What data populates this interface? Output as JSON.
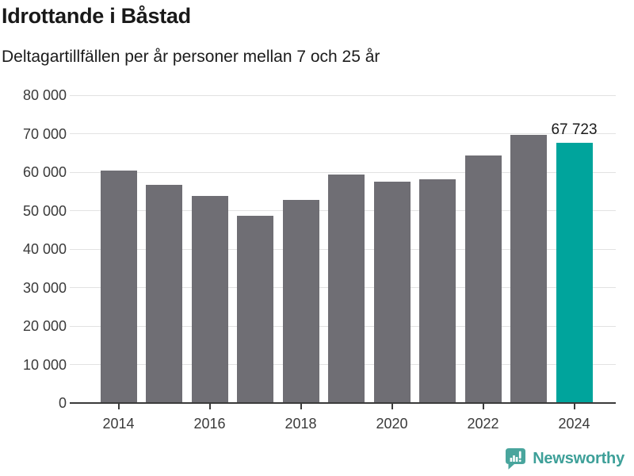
{
  "chart_data": {
    "type": "bar",
    "title": "Idrottande i Båstad",
    "subtitle": "Deltagartillfällen per år personer mellan 7 och 25 år",
    "categories": [
      "2014",
      "2015",
      "2016",
      "2017",
      "2018",
      "2019",
      "2020",
      "2021",
      "2022",
      "2023",
      "2024"
    ],
    "values": [
      60400,
      56700,
      53800,
      48800,
      52900,
      59500,
      57600,
      58300,
      64300,
      69700,
      67723
    ],
    "xlabel": "",
    "ylabel": "",
    "ylim": [
      0,
      80000
    ],
    "ytick_values": [
      0,
      10000,
      20000,
      30000,
      40000,
      50000,
      60000,
      70000,
      80000
    ],
    "ytick_labels": [
      "0",
      "10 000",
      "20 000",
      "30 000",
      "40 000",
      "50 000",
      "60 000",
      "70 000",
      "80 000"
    ],
    "xtick_labels": [
      "2014",
      "2016",
      "2018",
      "2020",
      "2022",
      "2024"
    ],
    "grid": "horizontal-gridlines-on",
    "legend": "none",
    "bar_color": "#6f6e74",
    "highlight_color": "#00a49c",
    "highlight_index": 10,
    "annotation": {
      "text": "67 723",
      "index": 10
    }
  },
  "footer": {
    "brand": "Newsworthy",
    "brand_color": "#3ea099",
    "icon": "newsworthy-bar-chart-speech-bubble-icon"
  }
}
